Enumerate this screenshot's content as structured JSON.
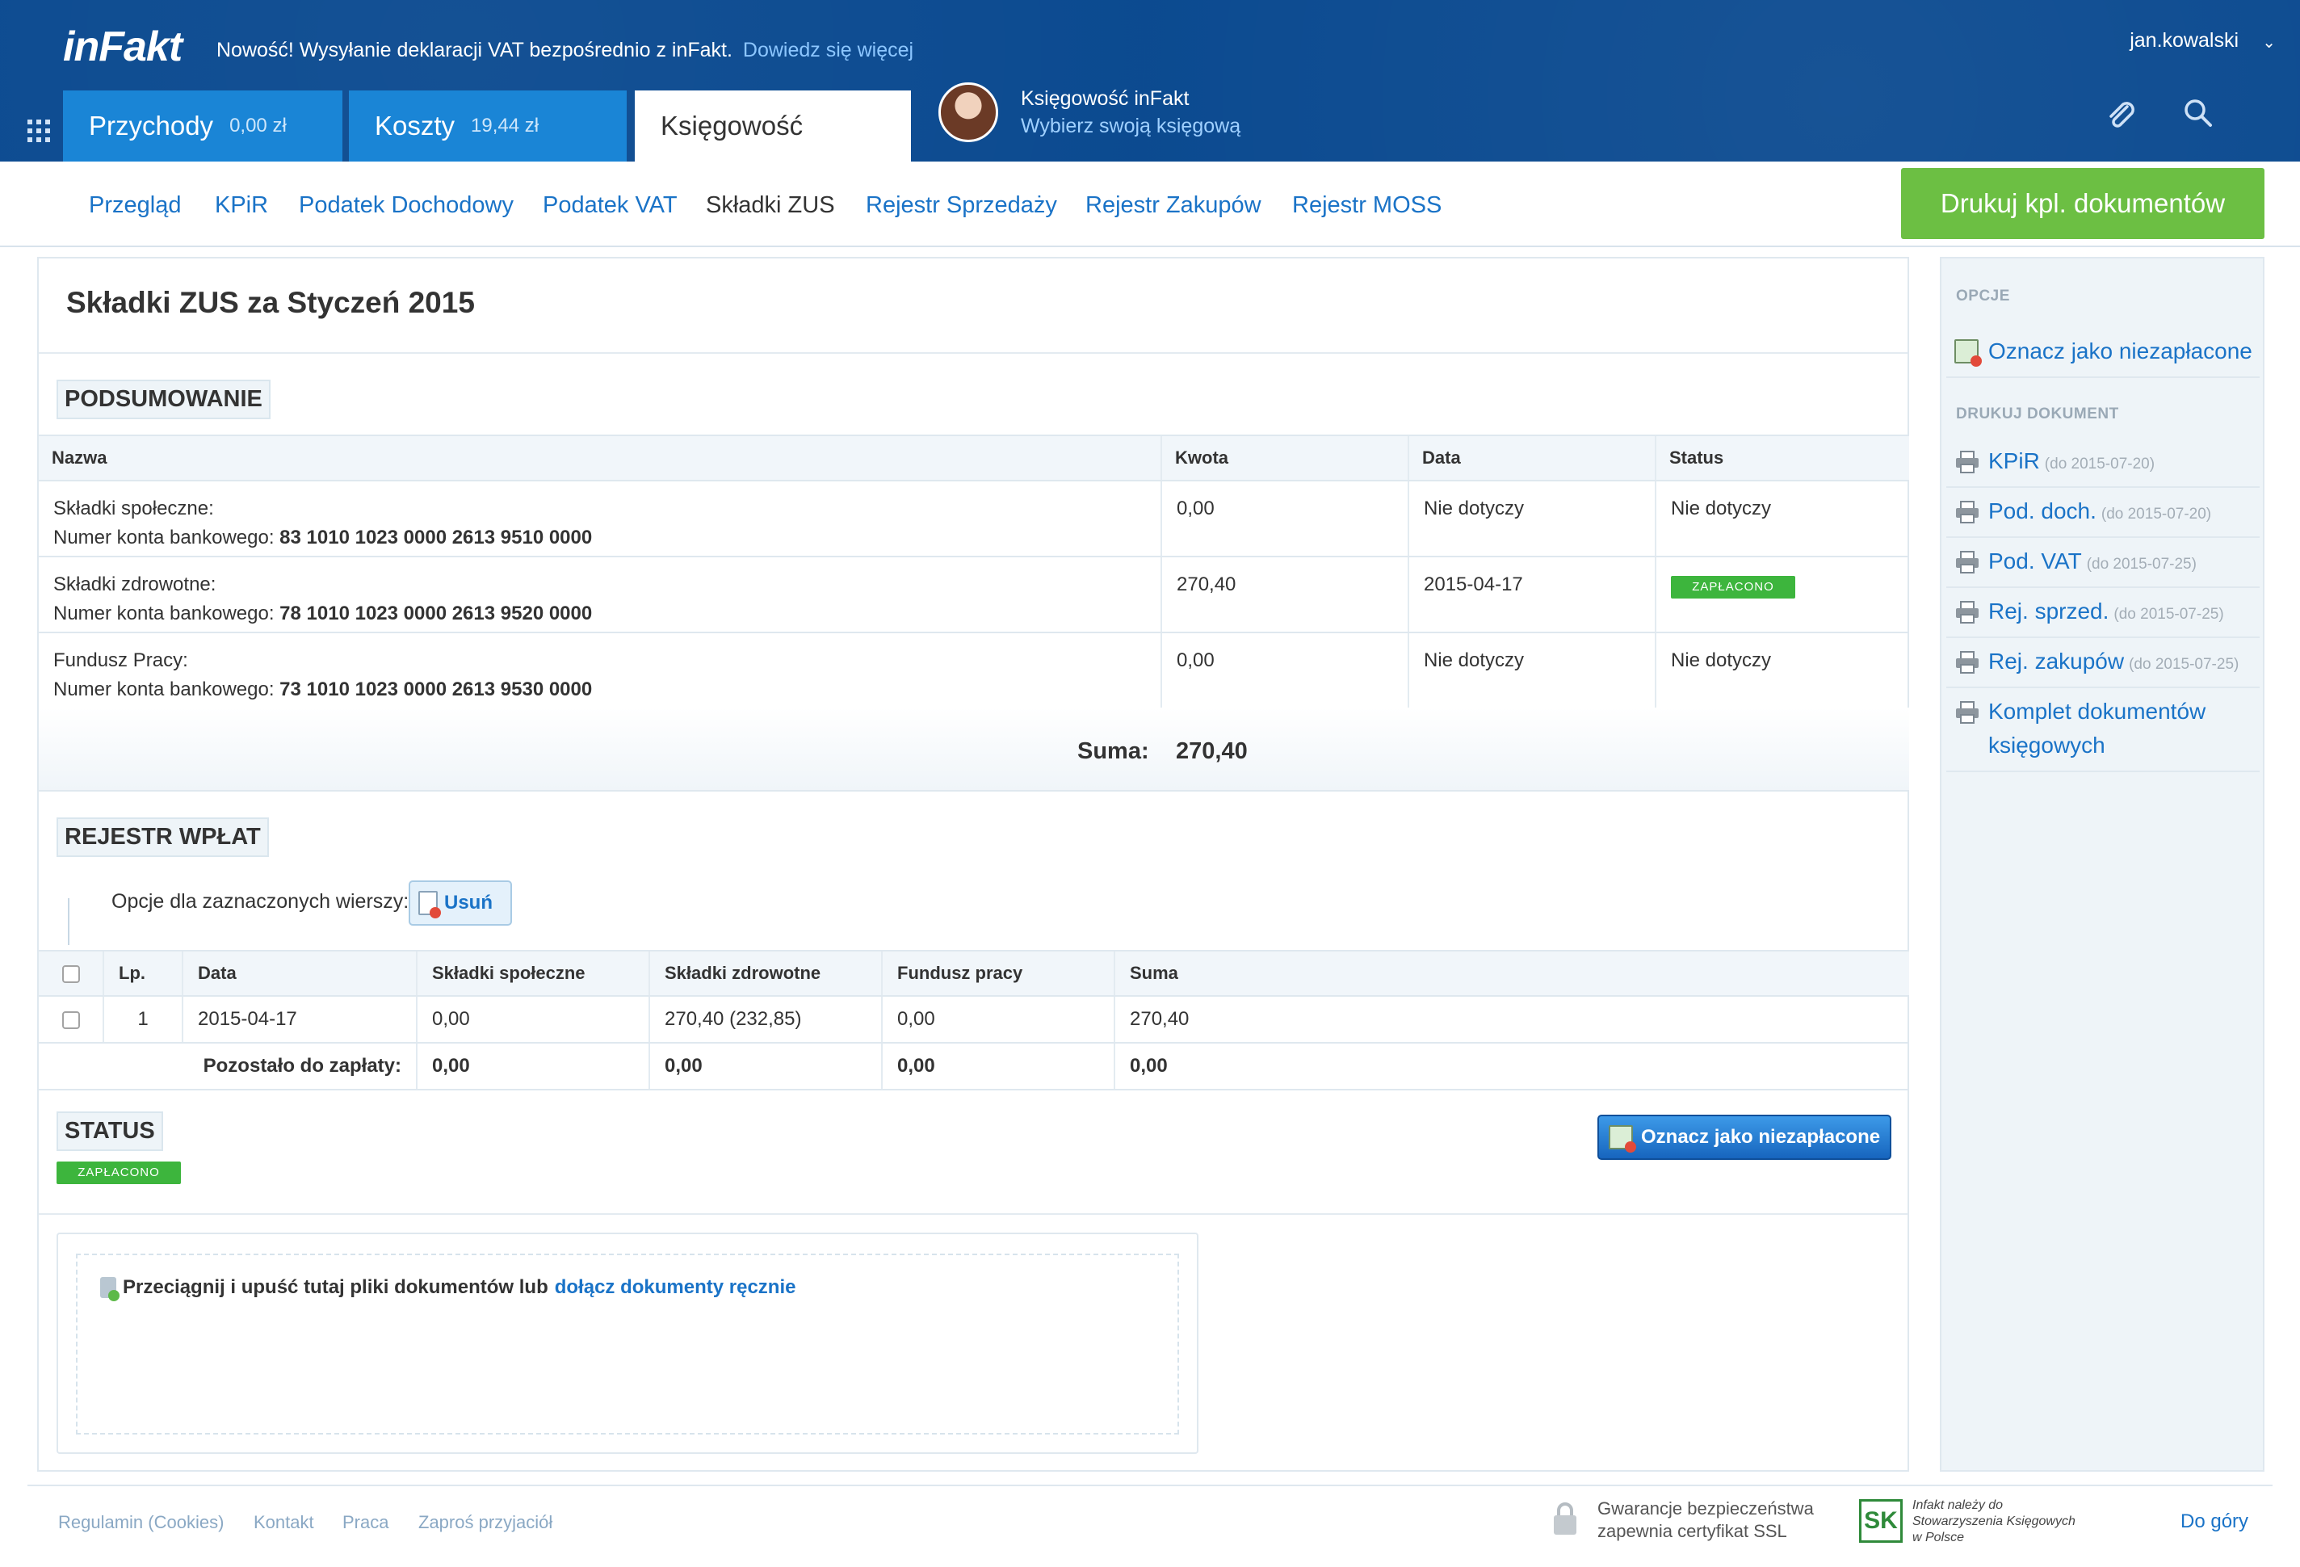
{
  "header": {
    "logo": "inFakt",
    "news_text": "Nowość! Wysyłanie deklaracji VAT bezpośrednio z inFakt.",
    "news_link": "Dowiedz się więcej",
    "username": "jan.kowalski",
    "tabs": [
      {
        "label": "Przychody",
        "amount": "0,00 zł"
      },
      {
        "label": "Koszty",
        "amount": "19,44 zł"
      },
      {
        "label": "Księgowość"
      }
    ],
    "advisor": {
      "title": "Księgowość inFakt",
      "subtitle": "Wybierz swoją księgową"
    }
  },
  "subnav": {
    "items": [
      "Przegląd",
      "KPiR",
      "Podatek Dochodowy",
      "Podatek VAT",
      "Składki ZUS",
      "Rejestr Sprzedaży",
      "Rejestr Zakupów",
      "Rejestr MOSS"
    ],
    "active": "Składki ZUS",
    "print_all_label": "Drukuj kpl. dokumentów"
  },
  "main": {
    "title": "Składki ZUS za Styczeń 2015",
    "summary": {
      "label": "PODSUMOWANIE",
      "columns": [
        "Nazwa",
        "Kwota",
        "Data",
        "Status"
      ],
      "rows": [
        {
          "name": "Składki społeczne:",
          "account_prefix": "Numer konta bankowego:",
          "account": "83 1010 1023 0000 2613 9510 0000",
          "amount": "0,00",
          "date": "Nie dotyczy",
          "status": "Nie dotyczy"
        },
        {
          "name": "Składki zdrowotne:",
          "account_prefix": "Numer konta bankowego:",
          "account": "78 1010 1023 0000 2613 9520 0000",
          "amount": "270,40",
          "date": "2015-04-17",
          "status": "ZAPŁACONO"
        },
        {
          "name": "Fundusz Pracy:",
          "account_prefix": "Numer konta bankowego:",
          "account": "73 1010 1023 0000 2613 9530 0000",
          "amount": "0,00",
          "date": "Nie dotyczy",
          "status": "Nie dotyczy"
        }
      ],
      "sum_label": "Suma:",
      "sum_value": "270,40"
    },
    "payments": {
      "label": "REJESTR WPŁAT",
      "options_label": "Opcje dla zaznaczonych wierszy:",
      "delete_label": "Usuń",
      "columns": [
        "Lp.",
        "Data",
        "Składki społeczne",
        "Składki zdrowotne",
        "Fundusz pracy",
        "Suma"
      ],
      "rows": [
        {
          "lp": "1",
          "date": "2015-04-17",
          "social": "0,00",
          "health": "270,40 (232,85)",
          "labor": "0,00",
          "sum": "270,40"
        }
      ],
      "remaining_label": "Pozostało do zapłaty:",
      "remaining": {
        "social": "0,00",
        "health": "0,00",
        "labor": "0,00",
        "sum": "0,00"
      }
    },
    "status": {
      "label": "STATUS",
      "badge": "ZAPŁACONO",
      "mark_unpaid_label": "Oznacz jako niezapłacone"
    },
    "dropzone": {
      "text": "Przeciągnij i upuść tutaj pliki dokumentów lub",
      "link": "dołącz dokumenty ręcznie"
    }
  },
  "sidebar": {
    "options_heading": "OPCJE",
    "mark_unpaid": "Oznacz jako niezapłacone",
    "print_heading": "DRUKUJ DOKUMENT",
    "print_items": [
      {
        "label": "KPiR",
        "due": "(do 2015-07-20)"
      },
      {
        "label": "Pod. doch.",
        "due": "(do 2015-07-20)"
      },
      {
        "label": "Pod. VAT",
        "due": "(do 2015-07-25)"
      },
      {
        "label": "Rej. sprzed.",
        "due": "(do 2015-07-25)"
      },
      {
        "label": "Rej. zakupów",
        "due": "(do 2015-07-25)"
      },
      {
        "label": "Komplet dokumentów księgowych",
        "due": ""
      }
    ]
  },
  "footer": {
    "links": [
      "Regulamin (Cookies)",
      "Kontakt",
      "Praca",
      "Zaproś przyjaciół"
    ],
    "ssl_line1": "Gwarancje bezpieczeństwa",
    "ssl_line2": "zapewnia certyfikat SSL",
    "ski_logo": "SK",
    "ski_line1": "Infakt należy do",
    "ski_line2": "Stowarzyszenia Księgowych",
    "ski_line3": "w Polsce",
    "back_to_top": "Do góry"
  },
  "colors": {
    "header_bg": "#0b4a90",
    "tab_blue": "#1a85d6",
    "link": "#1a73c7",
    "success": "#6cbf43",
    "badge_green": "#3db53d"
  }
}
